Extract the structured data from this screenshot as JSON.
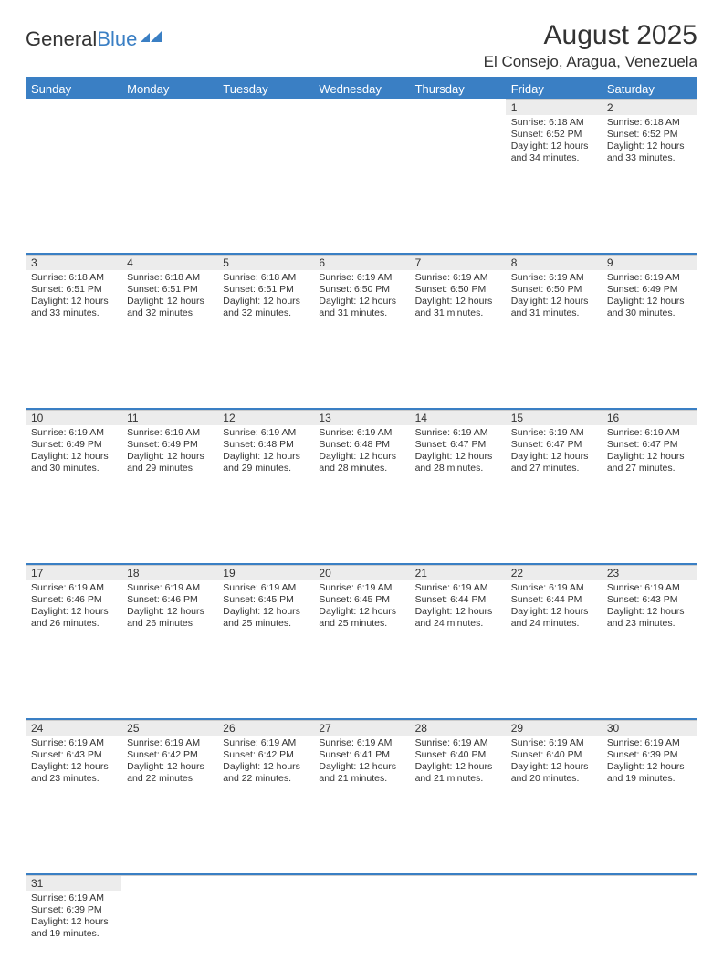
{
  "brand": {
    "part1": "General",
    "part2": "Blue"
  },
  "title": "August 2025",
  "location": "El Consejo, Aragua, Venezuela",
  "colors": {
    "accent": "#3a7fc4",
    "header_bg": "#3a7fc4",
    "header_text": "#ffffff",
    "daynum_bg": "#ececec",
    "text": "#333333",
    "background": "#ffffff"
  },
  "day_headers": [
    "Sunday",
    "Monday",
    "Tuesday",
    "Wednesday",
    "Thursday",
    "Friday",
    "Saturday"
  ],
  "weeks": [
    [
      null,
      null,
      null,
      null,
      null,
      {
        "n": "1",
        "sunrise": "6:18 AM",
        "sunset": "6:52 PM",
        "daylight": "12 hours and 34 minutes."
      },
      {
        "n": "2",
        "sunrise": "6:18 AM",
        "sunset": "6:52 PM",
        "daylight": "12 hours and 33 minutes."
      }
    ],
    [
      {
        "n": "3",
        "sunrise": "6:18 AM",
        "sunset": "6:51 PM",
        "daylight": "12 hours and 33 minutes."
      },
      {
        "n": "4",
        "sunrise": "6:18 AM",
        "sunset": "6:51 PM",
        "daylight": "12 hours and 32 minutes."
      },
      {
        "n": "5",
        "sunrise": "6:18 AM",
        "sunset": "6:51 PM",
        "daylight": "12 hours and 32 minutes."
      },
      {
        "n": "6",
        "sunrise": "6:19 AM",
        "sunset": "6:50 PM",
        "daylight": "12 hours and 31 minutes."
      },
      {
        "n": "7",
        "sunrise": "6:19 AM",
        "sunset": "6:50 PM",
        "daylight": "12 hours and 31 minutes."
      },
      {
        "n": "8",
        "sunrise": "6:19 AM",
        "sunset": "6:50 PM",
        "daylight": "12 hours and 31 minutes."
      },
      {
        "n": "9",
        "sunrise": "6:19 AM",
        "sunset": "6:49 PM",
        "daylight": "12 hours and 30 minutes."
      }
    ],
    [
      {
        "n": "10",
        "sunrise": "6:19 AM",
        "sunset": "6:49 PM",
        "daylight": "12 hours and 30 minutes."
      },
      {
        "n": "11",
        "sunrise": "6:19 AM",
        "sunset": "6:49 PM",
        "daylight": "12 hours and 29 minutes."
      },
      {
        "n": "12",
        "sunrise": "6:19 AM",
        "sunset": "6:48 PM",
        "daylight": "12 hours and 29 minutes."
      },
      {
        "n": "13",
        "sunrise": "6:19 AM",
        "sunset": "6:48 PM",
        "daylight": "12 hours and 28 minutes."
      },
      {
        "n": "14",
        "sunrise": "6:19 AM",
        "sunset": "6:47 PM",
        "daylight": "12 hours and 28 minutes."
      },
      {
        "n": "15",
        "sunrise": "6:19 AM",
        "sunset": "6:47 PM",
        "daylight": "12 hours and 27 minutes."
      },
      {
        "n": "16",
        "sunrise": "6:19 AM",
        "sunset": "6:47 PM",
        "daylight": "12 hours and 27 minutes."
      }
    ],
    [
      {
        "n": "17",
        "sunrise": "6:19 AM",
        "sunset": "6:46 PM",
        "daylight": "12 hours and 26 minutes."
      },
      {
        "n": "18",
        "sunrise": "6:19 AM",
        "sunset": "6:46 PM",
        "daylight": "12 hours and 26 minutes."
      },
      {
        "n": "19",
        "sunrise": "6:19 AM",
        "sunset": "6:45 PM",
        "daylight": "12 hours and 25 minutes."
      },
      {
        "n": "20",
        "sunrise": "6:19 AM",
        "sunset": "6:45 PM",
        "daylight": "12 hours and 25 minutes."
      },
      {
        "n": "21",
        "sunrise": "6:19 AM",
        "sunset": "6:44 PM",
        "daylight": "12 hours and 24 minutes."
      },
      {
        "n": "22",
        "sunrise": "6:19 AM",
        "sunset": "6:44 PM",
        "daylight": "12 hours and 24 minutes."
      },
      {
        "n": "23",
        "sunrise": "6:19 AM",
        "sunset": "6:43 PM",
        "daylight": "12 hours and 23 minutes."
      }
    ],
    [
      {
        "n": "24",
        "sunrise": "6:19 AM",
        "sunset": "6:43 PM",
        "daylight": "12 hours and 23 minutes."
      },
      {
        "n": "25",
        "sunrise": "6:19 AM",
        "sunset": "6:42 PM",
        "daylight": "12 hours and 22 minutes."
      },
      {
        "n": "26",
        "sunrise": "6:19 AM",
        "sunset": "6:42 PM",
        "daylight": "12 hours and 22 minutes."
      },
      {
        "n": "27",
        "sunrise": "6:19 AM",
        "sunset": "6:41 PM",
        "daylight": "12 hours and 21 minutes."
      },
      {
        "n": "28",
        "sunrise": "6:19 AM",
        "sunset": "6:40 PM",
        "daylight": "12 hours and 21 minutes."
      },
      {
        "n": "29",
        "sunrise": "6:19 AM",
        "sunset": "6:40 PM",
        "daylight": "12 hours and 20 minutes."
      },
      {
        "n": "30",
        "sunrise": "6:19 AM",
        "sunset": "6:39 PM",
        "daylight": "12 hours and 19 minutes."
      }
    ],
    [
      {
        "n": "31",
        "sunrise": "6:19 AM",
        "sunset": "6:39 PM",
        "daylight": "12 hours and 19 minutes."
      },
      null,
      null,
      null,
      null,
      null,
      null
    ]
  ],
  "labels": {
    "sunrise": "Sunrise: ",
    "sunset": "Sunset: ",
    "daylight": "Daylight: "
  }
}
